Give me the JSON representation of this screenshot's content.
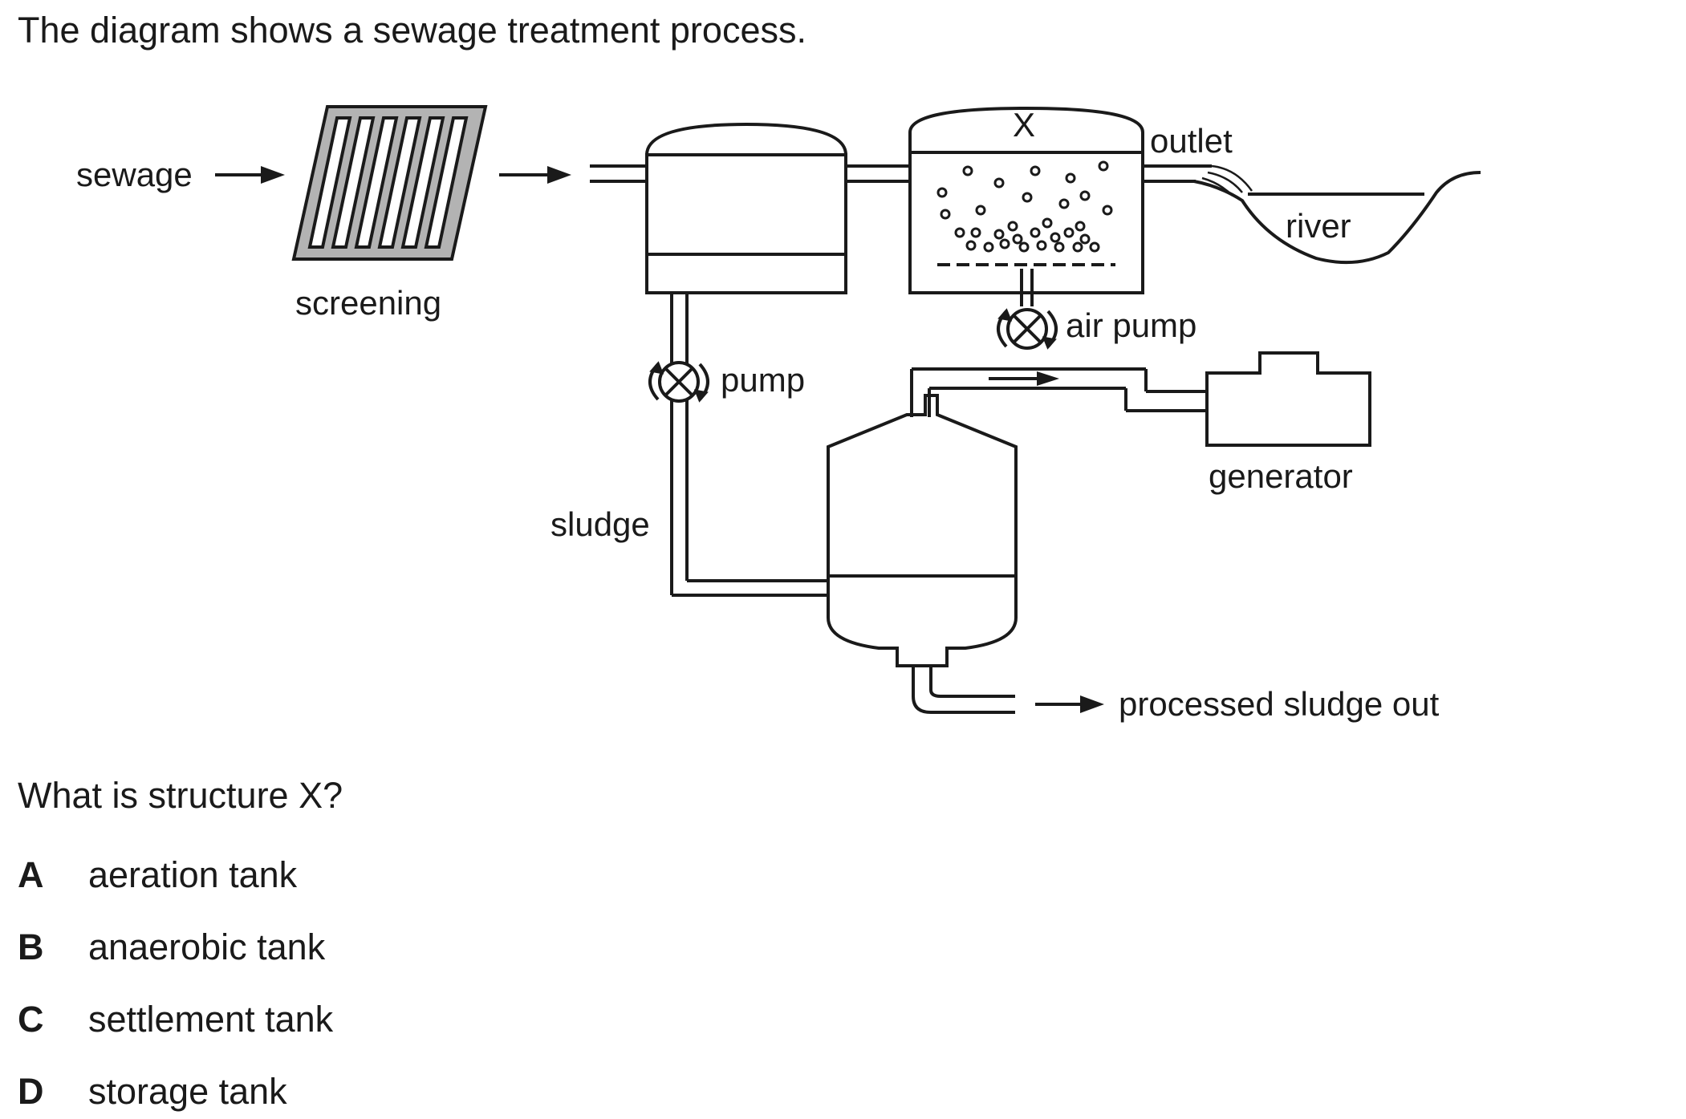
{
  "intro": "The diagram shows a sewage treatment process.",
  "diagram": {
    "labels": {
      "sewage": "sewage",
      "screening": "screening",
      "x": "X",
      "outlet": "outlet",
      "river": "river",
      "air_pump": "air pump",
      "pump": "pump",
      "sludge": "sludge",
      "generator": "generator",
      "processed": "processed sludge out"
    }
  },
  "question": "What is structure X?",
  "options": [
    {
      "letter": "A",
      "text": "aeration tank"
    },
    {
      "letter": "B",
      "text": "anaerobic tank"
    },
    {
      "letter": "C",
      "text": "settlement tank"
    },
    {
      "letter": "D",
      "text": "storage tank"
    }
  ],
  "colors": {
    "line": "#1a1a1a",
    "screen_fill": "#b3b3b3"
  }
}
